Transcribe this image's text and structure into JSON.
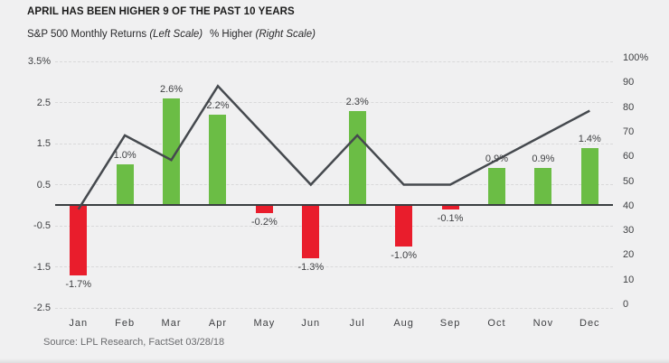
{
  "header": {
    "title": "APRIL HAS BEEN HIGHER 9 OF THE PAST 10 YEARS",
    "legend": [
      {
        "label": "S&P 500 Monthly Returns ",
        "scale_note": "(Left Scale)"
      },
      {
        "label": "% Higher ",
        "scale_note": "(Right Scale)"
      }
    ]
  },
  "footer": {
    "source": "Source: LPL Research, FactSet 03/28/18"
  },
  "chart_data": {
    "type": "bar+line combo",
    "title": "APRIL HAS BEEN HIGHER 9 OF THE PAST 10 YEARS",
    "categories": [
      "Jan",
      "Feb",
      "Mar",
      "Apr",
      "May",
      "Jun",
      "Jul",
      "Aug",
      "Sep",
      "Oct",
      "Nov",
      "Dec"
    ],
    "series": [
      {
        "name": "S&P 500 Monthly Returns",
        "type": "bar",
        "axis": "left",
        "values": [
          -1.7,
          1.0,
          2.6,
          2.2,
          -0.2,
          -1.3,
          2.3,
          -1.0,
          -0.1,
          0.9,
          0.9,
          1.4
        ],
        "labels": [
          "-1.7%",
          "1.0%",
          "2.6%",
          "2.2%",
          "-0.2%",
          "-1.3%",
          "2.3%",
          "-1.0%",
          "-0.1%",
          "0.9%",
          "0.9%",
          "1.4%"
        ]
      },
      {
        "name": "% Higher",
        "type": "line",
        "axis": "right",
        "values": [
          40,
          70,
          60,
          90,
          70,
          50,
          70,
          50,
          50,
          60,
          70,
          80
        ]
      }
    ],
    "left_axis": {
      "label": "S&P 500 Monthly Returns (Left Scale)",
      "tick_labels": [
        "3.5%",
        "2.5",
        "1.5",
        "0.5",
        "-0.5",
        "-1.5",
        "-2.5"
      ],
      "tick_values": [
        3.5,
        2.5,
        1.5,
        0.5,
        -0.5,
        -1.5,
        -2.5
      ],
      "max": 3.5,
      "min": -2.5
    },
    "right_axis": {
      "label": "% Higher (Right Scale)",
      "tick_labels": [
        "100%",
        "90",
        "80",
        "70",
        "60",
        "50",
        "40",
        "30",
        "20",
        "10",
        "0"
      ],
      "tick_values": [
        100,
        90,
        80,
        70,
        60,
        50,
        40,
        30,
        20,
        10,
        0
      ],
      "max": 100,
      "min": 0
    },
    "grid": "horizontal dashed, zero line solid",
    "legend_position": "top-left, text only",
    "colors": {
      "bar_positive": "#6bbd45",
      "bar_negative": "#e91d2c",
      "line": "#45494e",
      "grid": "#d9d9da",
      "zero_line": "#3a3e41",
      "background": "#f0f0f1",
      "axis_text": "#3f4043",
      "source_text": "#6a6b6e",
      "title_text": "#1b1b1b"
    }
  }
}
